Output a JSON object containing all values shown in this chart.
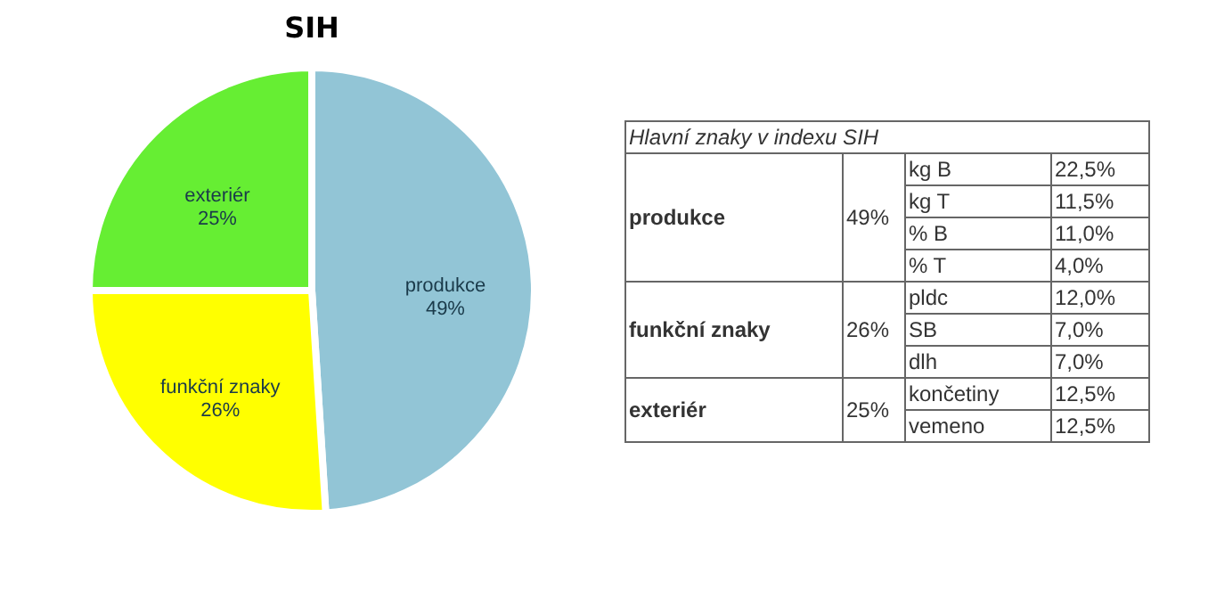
{
  "chart_data": [
    {
      "type": "pie",
      "title": "SIH",
      "categories": [
        "produkce",
        "funkční znaky",
        "exteriér"
      ],
      "values": [
        49,
        26,
        25
      ],
      "colors": [
        "#92c5d6",
        "#ffff00",
        "#66ee33"
      ],
      "value_labels": [
        "49%",
        "26%",
        "25%"
      ],
      "legend": false
    },
    {
      "type": "other",
      "title": "Hlavní znaky v indexu SIH",
      "cell_labels": [
        [
          "produkce",
          "49%",
          "kg B",
          "22,5%"
        ],
        [
          null,
          null,
          "kg T",
          "11,5%"
        ],
        [
          null,
          null,
          "% B",
          "11,0%"
        ],
        [
          null,
          null,
          "% T",
          "4,0%"
        ],
        [
          "funkční znaky",
          "26%",
          "pldc",
          "12,0%"
        ],
        [
          null,
          null,
          "SB",
          "7,0%"
        ],
        [
          null,
          null,
          "dlh",
          "7,0%"
        ],
        [
          "exteriér",
          "25%",
          "končetiny",
          "12,5%"
        ],
        [
          null,
          null,
          "vemeno",
          "12,5%"
        ]
      ]
    }
  ]
}
